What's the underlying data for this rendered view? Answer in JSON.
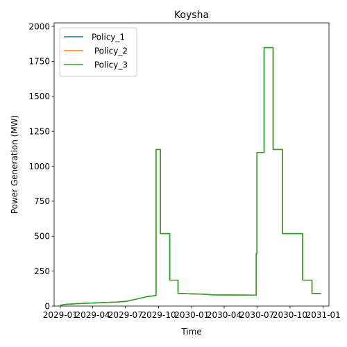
{
  "chart_data": {
    "type": "line",
    "title": "Koysha",
    "xlabel": "Time",
    "ylabel": "Power Generation (MW)",
    "x_start": "2028-12-15",
    "x_end": "2031-01-17",
    "ylim": [
      0,
      2025
    ],
    "x_ticks": [
      "2029-01",
      "2029-04",
      "2029-07",
      "2029-10",
      "2030-01",
      "2030-04",
      "2030-07",
      "2030-10",
      "2031-01"
    ],
    "y_ticks": [
      0,
      250,
      500,
      750,
      1000,
      1250,
      1500,
      1750,
      2000
    ],
    "grid": false,
    "legend_position": "upper left",
    "x": [
      "2029-01-01",
      "2029-01-15",
      "2029-02-15",
      "2029-04-01",
      "2029-06-01",
      "2029-07-01",
      "2029-08-01",
      "2029-09-01",
      "2029-09-24",
      "2029-09-24",
      "2029-10-06",
      "2029-10-06",
      "2029-11-01",
      "2029-11-01",
      "2029-11-24",
      "2029-11-24",
      "2030-02-01",
      "2030-02-01",
      "2030-03-01",
      "2030-03-01",
      "2030-06-29",
      "2030-06-29",
      "2030-07-01",
      "2030-07-01",
      "2030-07-21",
      "2030-07-21",
      "2030-08-15",
      "2030-08-15",
      "2030-09-10",
      "2030-09-10",
      "2030-11-05",
      "2030-11-05",
      "2030-11-16",
      "2030-11-16",
      "2030-12-01",
      "2030-12-01",
      "2030-12-26"
    ],
    "series": [
      {
        "name": "Policy_1",
        "color": "#1f77b4",
        "values": [
          5,
          12,
          17,
          22,
          28,
          33,
          50,
          68,
          75,
          1120,
          1120,
          518,
          518,
          185,
          185,
          90,
          85,
          85,
          80,
          80,
          78,
          375,
          375,
          1098,
          1098,
          1848,
          1848,
          1120,
          1120,
          518,
          518,
          185,
          185,
          185,
          185,
          90,
          90
        ]
      },
      {
        "name": " Policy_2",
        "color": "#ff7f0e",
        "values": [
          5,
          12,
          17,
          22,
          28,
          33,
          50,
          68,
          75,
          1120,
          1120,
          518,
          518,
          185,
          185,
          90,
          85,
          85,
          80,
          80,
          78,
          375,
          375,
          1098,
          1098,
          1848,
          1848,
          1120,
          1120,
          518,
          518,
          185,
          185,
          185,
          185,
          90,
          90
        ]
      },
      {
        "name": " Policy_3",
        "color": "#2ca02c",
        "values": [
          5,
          12,
          17,
          22,
          28,
          33,
          50,
          68,
          75,
          1120,
          1120,
          518,
          518,
          185,
          185,
          90,
          85,
          85,
          80,
          80,
          78,
          375,
          375,
          1098,
          1098,
          1848,
          1848,
          1120,
          1120,
          518,
          518,
          185,
          185,
          185,
          185,
          90,
          90
        ]
      }
    ]
  }
}
